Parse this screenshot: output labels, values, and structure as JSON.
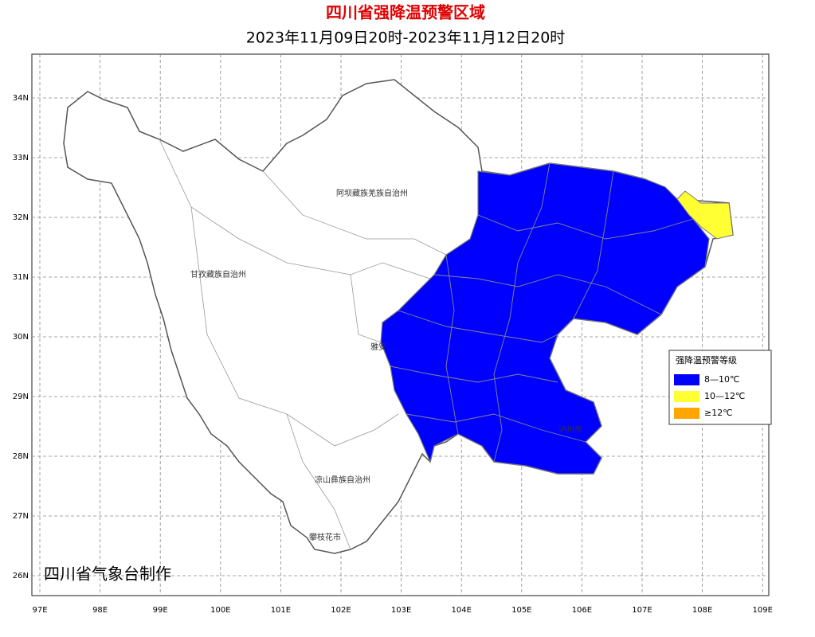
{
  "header": {
    "title": "四川省强降温预警区域",
    "subtitle": "2023年11月09日20时-2023年11月12日20时"
  },
  "axes": {
    "lon_ticks": [
      "97E",
      "98E",
      "99E",
      "100E",
      "101E",
      "102E",
      "103E",
      "104E",
      "105E",
      "106E",
      "107E",
      "108E",
      "109E"
    ],
    "lat_ticks": [
      "34N",
      "33N",
      "32N",
      "31N",
      "30N",
      "29N",
      "28N",
      "27N",
      "26N"
    ]
  },
  "regions": [
    {
      "label": "阿坝藏族羌族自治州"
    },
    {
      "label": "甘孜藏族自治州"
    },
    {
      "label": "凉山彝族自治州"
    },
    {
      "label": "攀枝花市"
    },
    {
      "label": "雅安"
    },
    {
      "label": "泸州市"
    }
  ],
  "legend": {
    "title": "强降温预警等级",
    "items": [
      {
        "label": "8—10℃",
        "color": "#0000ff"
      },
      {
        "label": "10—12℃",
        "color": "#ffff33"
      },
      {
        "label": "≥12℃",
        "color": "#ffa500"
      }
    ]
  },
  "credit": "四川省气象台制作"
}
